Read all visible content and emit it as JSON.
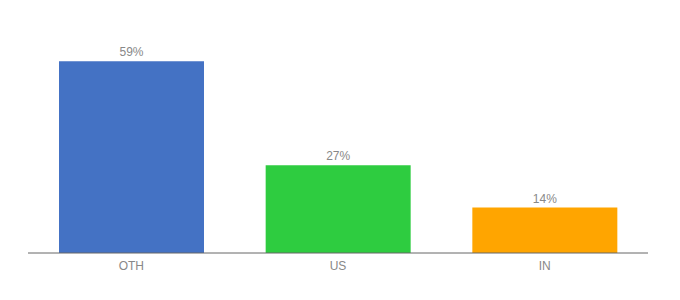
{
  "chart_data": {
    "type": "bar",
    "categories": [
      "OTH",
      "US",
      "IN"
    ],
    "values": [
      59,
      27,
      14
    ],
    "value_labels": [
      "59%",
      "27%",
      "14%"
    ],
    "colors": [
      "#4472C4",
      "#2ECC40",
      "#FFA500"
    ],
    "ylim": [
      0,
      68
    ],
    "data_labels": true,
    "tick_labels": "x",
    "grid": false
  }
}
